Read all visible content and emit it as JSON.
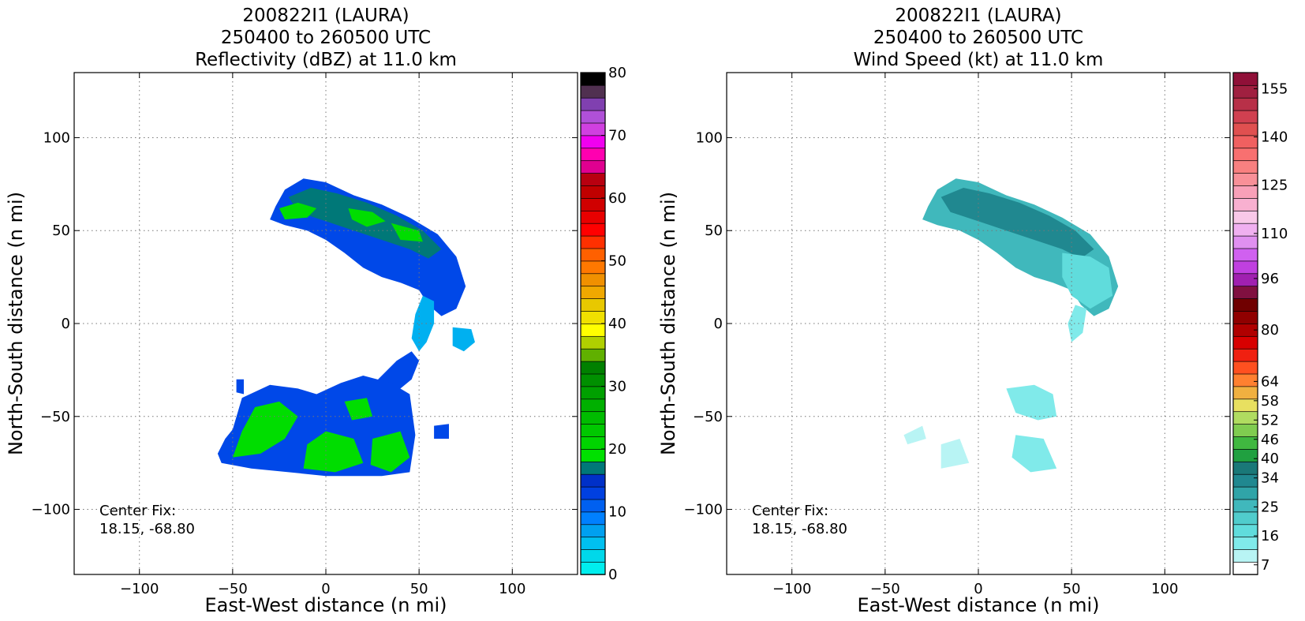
{
  "chart_data": [
    {
      "type": "heatmap",
      "title_lines": [
        "200822I1 (LAURA)",
        "250400 to 260500 UTC",
        "Reflectivity (dBZ) at 11.0 km"
      ],
      "xlabel": "East-West distance (n mi)",
      "ylabel": "North-South distance (n mi)",
      "xlim": [
        -135,
        135
      ],
      "ylim": [
        -135,
        135
      ],
      "xticks": [
        -100,
        -50,
        0,
        50,
        100
      ],
      "yticks": [
        -100,
        -50,
        0,
        50,
        100
      ],
      "grid": true,
      "center_fix": [
        "Center Fix:",
        "18.15, -68.80"
      ],
      "colorbar": {
        "min": 0,
        "max": 80,
        "tick_labels": [
          0,
          10,
          20,
          30,
          40,
          50,
          60,
          70,
          80
        ],
        "colors": [
          "#00eeee",
          "#00d8ea",
          "#00c0f0",
          "#00a0f0",
          "#0080ff",
          "#0060f0",
          "#0040e0",
          "#0030c8",
          "#007878",
          "#00e000",
          "#00d400",
          "#00c800",
          "#00bc00",
          "#00b000",
          "#00a000",
          "#009000",
          "#008000",
          "#60b000",
          "#b0d000",
          "#ffff00",
          "#f0e000",
          "#e8c800",
          "#f0a800",
          "#f09000",
          "#ff7800",
          "#ff6000",
          "#ff3000",
          "#ff0000",
          "#e80000",
          "#d00000",
          "#c00000",
          "#b80010",
          "#e00090",
          "#ff00b0",
          "#f000f0",
          "#d040e0",
          "#b050d8",
          "#8040b0",
          "#503050",
          "#000000"
        ]
      },
      "regions": [
        {
          "name": "north-band",
          "color": "#0048e8",
          "points": [
            [
              -27,
              63
            ],
            [
              -22,
              72
            ],
            [
              -12,
              78
            ],
            [
              0,
              76
            ],
            [
              15,
              69
            ],
            [
              30,
              64
            ],
            [
              45,
              57
            ],
            [
              60,
              48
            ],
            [
              70,
              36
            ],
            [
              75,
              20
            ],
            [
              70,
              8
            ],
            [
              62,
              4
            ],
            [
              55,
              10
            ],
            [
              50,
              18
            ],
            [
              40,
              22
            ],
            [
              30,
              25
            ],
            [
              20,
              30
            ],
            [
              10,
              38
            ],
            [
              0,
              45
            ],
            [
              -10,
              50
            ],
            [
              -22,
              53
            ],
            [
              -30,
              56
            ]
          ]
        },
        {
          "name": "north-core",
          "color": "#007878",
          "points": [
            [
              -20,
              68
            ],
            [
              -8,
              73
            ],
            [
              6,
              70
            ],
            [
              22,
              65
            ],
            [
              38,
              58
            ],
            [
              52,
              50
            ],
            [
              62,
              40
            ],
            [
              55,
              35
            ],
            [
              45,
              40
            ],
            [
              30,
              45
            ],
            [
              15,
              50
            ],
            [
              0,
              55
            ],
            [
              -15,
              60
            ]
          ]
        },
        {
          "name": "north-green-1",
          "color": "#00dd00",
          "points": [
            [
              -25,
              62
            ],
            [
              -15,
              65
            ],
            [
              -5,
              62
            ],
            [
              -10,
              57
            ],
            [
              -22,
              56
            ]
          ]
        },
        {
          "name": "north-green-2",
          "color": "#00dd00",
          "points": [
            [
              12,
              62
            ],
            [
              25,
              60
            ],
            [
              32,
              55
            ],
            [
              22,
              52
            ],
            [
              14,
              56
            ]
          ]
        },
        {
          "name": "north-green-3",
          "color": "#00dd00",
          "points": [
            [
              35,
              54
            ],
            [
              50,
              50
            ],
            [
              52,
              44
            ],
            [
              40,
              45
            ]
          ]
        },
        {
          "name": "tail-1",
          "color": "#00b0f0",
          "points": [
            [
              52,
              15
            ],
            [
              58,
              12
            ],
            [
              58,
              0
            ],
            [
              54,
              -10
            ],
            [
              50,
              -15
            ],
            [
              46,
              -8
            ],
            [
              48,
              5
            ]
          ]
        },
        {
          "name": "tail-2",
          "color": "#00b0f0",
          "points": [
            [
              68,
              -2
            ],
            [
              78,
              -3
            ],
            [
              80,
              -10
            ],
            [
              74,
              -15
            ],
            [
              68,
              -12
            ]
          ]
        },
        {
          "name": "arc",
          "color": "#0048e8",
          "points": [
            [
              38,
              -20
            ],
            [
              46,
              -15
            ],
            [
              50,
              -20
            ],
            [
              46,
              -30
            ],
            [
              40,
              -35
            ],
            [
              30,
              -38
            ],
            [
              28,
              -30
            ]
          ]
        },
        {
          "name": "south-band",
          "color": "#0048e8",
          "points": [
            [
              -50,
              -57
            ],
            [
              -45,
              -40
            ],
            [
              -30,
              -33
            ],
            [
              -15,
              -35
            ],
            [
              -5,
              -38
            ],
            [
              8,
              -32
            ],
            [
              20,
              -28
            ],
            [
              35,
              -32
            ],
            [
              45,
              -38
            ],
            [
              48,
              -60
            ],
            [
              45,
              -80
            ],
            [
              30,
              -82
            ],
            [
              0,
              -82
            ],
            [
              -20,
              -80
            ],
            [
              -40,
              -78
            ],
            [
              -56,
              -75
            ],
            [
              -58,
              -70
            ],
            [
              -54,
              -62
            ]
          ]
        },
        {
          "name": "south-green-1",
          "color": "#00dd00",
          "points": [
            [
              -45,
              -58
            ],
            [
              -38,
              -45
            ],
            [
              -25,
              -42
            ],
            [
              -15,
              -50
            ],
            [
              -22,
              -62
            ],
            [
              -35,
              -70
            ],
            [
              -50,
              -72
            ]
          ]
        },
        {
          "name": "south-green-2",
          "color": "#00dd00",
          "points": [
            [
              -10,
              -65
            ],
            [
              0,
              -58
            ],
            [
              15,
              -62
            ],
            [
              20,
              -75
            ],
            [
              5,
              -80
            ],
            [
              -12,
              -78
            ]
          ]
        },
        {
          "name": "south-green-3",
          "color": "#00dd00",
          "points": [
            [
              25,
              -62
            ],
            [
              40,
              -58
            ],
            [
              45,
              -72
            ],
            [
              35,
              -80
            ],
            [
              24,
              -76
            ]
          ]
        },
        {
          "name": "south-green-4",
          "color": "#00dd00",
          "points": [
            [
              10,
              -42
            ],
            [
              22,
              -40
            ],
            [
              25,
              -50
            ],
            [
              14,
              -52
            ]
          ]
        },
        {
          "name": "patch-w",
          "color": "#0048e8",
          "points": [
            [
              -48,
              -30
            ],
            [
              -44,
              -30
            ],
            [
              -44,
              -38
            ],
            [
              -48,
              -37
            ]
          ]
        },
        {
          "name": "patch-e",
          "color": "#0048e8",
          "points": [
            [
              58,
              -55
            ],
            [
              66,
              -54
            ],
            [
              66,
              -62
            ],
            [
              58,
              -62
            ]
          ]
        }
      ]
    },
    {
      "type": "heatmap",
      "title_lines": [
        "200822I1 (LAURA)",
        "250400 to 260500 UTC",
        "Wind Speed (kt) at 11.0 km"
      ],
      "xlabel": "East-West distance (n mi)",
      "ylabel": "North-South distance (n mi)",
      "xlim": [
        -135,
        135
      ],
      "ylim": [
        -135,
        135
      ],
      "xticks": [
        -100,
        -50,
        0,
        50,
        100
      ],
      "yticks": [
        -100,
        -50,
        0,
        50,
        100
      ],
      "grid": true,
      "center_fix": [
        "Center Fix:",
        "18.15, -68.80"
      ],
      "colorbar": {
        "min": 4,
        "max": 160,
        "tick_labels": [
          7,
          16,
          25,
          34,
          40,
          46,
          52,
          58,
          64,
          80,
          96,
          110,
          125,
          140,
          155
        ],
        "colors": [
          "#ffffff",
          "#b8f4f4",
          "#80eaea",
          "#60dcdc",
          "#50cccc",
          "#40b8bc",
          "#30a4a8",
          "#208890",
          "#1a7878",
          "#20a040",
          "#40b840",
          "#80cc50",
          "#b0dc60",
          "#e8e060",
          "#f0b040",
          "#ff8030",
          "#ff5020",
          "#f02010",
          "#d80000",
          "#b00000",
          "#900000",
          "#700000",
          "#801040",
          "#a020b0",
          "#c040e0",
          "#d060f0",
          "#e090f0",
          "#f0b0f0",
          "#f8c8e8",
          "#f8b0d0",
          "#f8a0b8",
          "#f89098",
          "#f88080",
          "#f87070",
          "#f06060",
          "#e05050",
          "#d04050",
          "#b83048",
          "#a02040",
          "#901038"
        ]
      },
      "regions": [
        {
          "name": "north-band",
          "color": "#40b8bc",
          "points": [
            [
              -27,
              63
            ],
            [
              -22,
              72
            ],
            [
              -12,
              78
            ],
            [
              0,
              76
            ],
            [
              15,
              69
            ],
            [
              30,
              64
            ],
            [
              45,
              57
            ],
            [
              60,
              48
            ],
            [
              70,
              36
            ],
            [
              75,
              20
            ],
            [
              70,
              8
            ],
            [
              62,
              4
            ],
            [
              55,
              10
            ],
            [
              50,
              18
            ],
            [
              40,
              22
            ],
            [
              30,
              25
            ],
            [
              20,
              30
            ],
            [
              10,
              38
            ],
            [
              0,
              45
            ],
            [
              -10,
              50
            ],
            [
              -22,
              53
            ],
            [
              -30,
              56
            ]
          ]
        },
        {
          "name": "north-core",
          "color": "#208890",
          "points": [
            [
              -20,
              68
            ],
            [
              -8,
              73
            ],
            [
              6,
              70
            ],
            [
              22,
              65
            ],
            [
              38,
              58
            ],
            [
              52,
              50
            ],
            [
              62,
              40
            ],
            [
              55,
              35
            ],
            [
              45,
              40
            ],
            [
              30,
              45
            ],
            [
              15,
              50
            ],
            [
              0,
              55
            ],
            [
              -15,
              60
            ]
          ]
        },
        {
          "name": "north-light",
          "color": "#60dcdc",
          "points": [
            [
              45,
              38
            ],
            [
              60,
              36
            ],
            [
              70,
              30
            ],
            [
              72,
              15
            ],
            [
              60,
              8
            ],
            [
              50,
              15
            ],
            [
              45,
              25
            ]
          ]
        },
        {
          "name": "tail",
          "color": "#80eaea",
          "points": [
            [
              52,
              10
            ],
            [
              58,
              8
            ],
            [
              56,
              -5
            ],
            [
              50,
              -10
            ],
            [
              48,
              0
            ]
          ]
        },
        {
          "name": "south-1",
          "color": "#80eaea",
          "points": [
            [
              15,
              -35
            ],
            [
              30,
              -33
            ],
            [
              40,
              -38
            ],
            [
              42,
              -50
            ],
            [
              32,
              -52
            ],
            [
              20,
              -48
            ]
          ]
        },
        {
          "name": "south-2",
          "color": "#b8f4f4",
          "points": [
            [
              -20,
              -65
            ],
            [
              -10,
              -62
            ],
            [
              -5,
              -75
            ],
            [
              -20,
              -78
            ]
          ]
        },
        {
          "name": "south-3",
          "color": "#80eaea",
          "points": [
            [
              20,
              -60
            ],
            [
              35,
              -62
            ],
            [
              42,
              -78
            ],
            [
              28,
              -80
            ],
            [
              18,
              -72
            ]
          ]
        },
        {
          "name": "south-4",
          "color": "#b8f4f4",
          "points": [
            [
              -40,
              -60
            ],
            [
              -30,
              -55
            ],
            [
              -28,
              -62
            ],
            [
              -38,
              -65
            ]
          ]
        }
      ]
    }
  ]
}
